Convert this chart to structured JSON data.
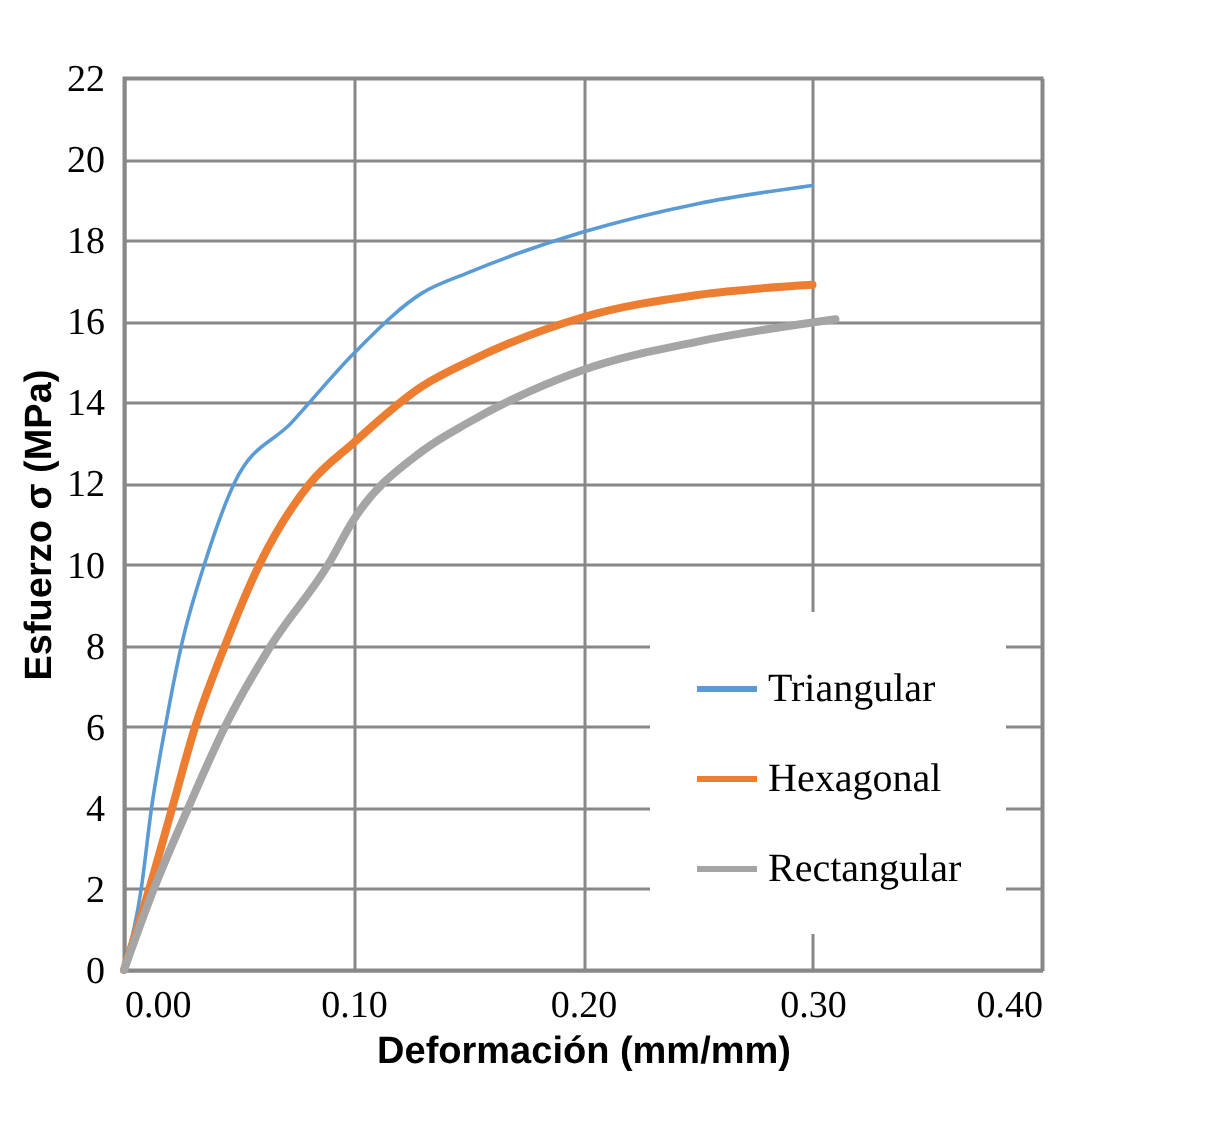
{
  "chart_data": {
    "type": "line",
    "xlabel": "Deformación  (mm/mm)",
    "ylabel": "Esfuerzo σ (MPa)",
    "xlim": [
      0,
      0.4
    ],
    "xticks": [
      {
        "value": 0,
        "label": "0.00"
      },
      {
        "value": 0.1,
        "label": "0.10"
      },
      {
        "value": 0.2,
        "label": "0.20"
      },
      {
        "value": 0.3,
        "label": "0.30"
      },
      {
        "value": 0.4,
        "label": "0.40"
      }
    ],
    "ylim": [
      0,
      22
    ],
    "yticks": [
      0,
      2,
      4,
      6,
      8,
      10,
      12,
      14,
      16,
      18,
      20,
      22
    ],
    "grid": true,
    "legend": "bottom right",
    "marker": "none",
    "line_style": "solid",
    "series": [
      {
        "name": "Triangular",
        "color": "#5b9bd5",
        "x": [
          0,
          0.0075,
          0.012,
          0.018,
          0.025,
          0.035,
          0.048,
          0.073,
          0.1,
          0.13,
          0.15,
          0.2,
          0.25,
          0.3
        ],
        "values": [
          0,
          2,
          4,
          6,
          8,
          10,
          12,
          13.5,
          15.2,
          16.7,
          17.2,
          18.2,
          18.9,
          19.35
        ]
      },
      {
        "name": "Hexagonal",
        "color": "#ed7d31",
        "x": [
          0,
          0.011,
          0.021,
          0.031,
          0.044,
          0.059,
          0.081,
          0.1,
          0.13,
          0.15,
          0.2,
          0.25,
          0.3
        ],
        "values": [
          0,
          2,
          4,
          6,
          8,
          10,
          12,
          13,
          14.4,
          15,
          16.1,
          16.65,
          16.9
        ]
      },
      {
        "name": "Rectangular",
        "color": "#a5a5a5",
        "x": [
          0,
          0.013,
          0.028,
          0.044,
          0.064,
          0.089,
          0.1,
          0.13,
          0.15,
          0.2,
          0.25,
          0.31
        ],
        "values": [
          0,
          2,
          4,
          6,
          8,
          10,
          11.1,
          12.8,
          13.5,
          14.8,
          15.5,
          16.05
        ]
      }
    ]
  }
}
